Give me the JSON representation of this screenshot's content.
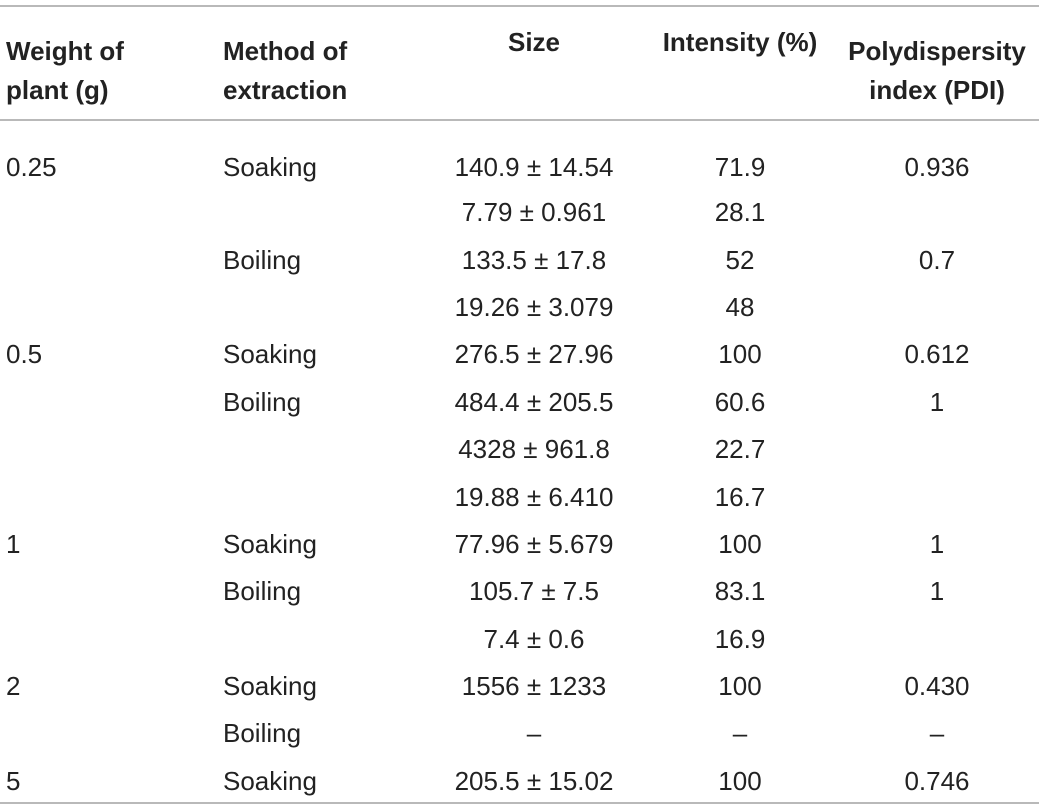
{
  "headers": [
    "Weight of plant (g)",
    "Method of extraction",
    "Size",
    "Intensity (%)",
    "Polydispersity index (PDI)"
  ],
  "header_lines": [
    [
      "Weight of",
      "plant (g)"
    ],
    [
      "Method of",
      "extraction"
    ],
    [
      "Size"
    ],
    [
      "Intensity (%)"
    ],
    [
      "Polydispersity",
      "index (PDI)"
    ]
  ],
  "rows": [
    {
      "weight": "0.25",
      "method": "Soaking",
      "size": "140.9 ± 14.54",
      "intensity": "71.9",
      "pdi": "0.936"
    },
    {
      "weight": "",
      "method": "",
      "size": "7.79 ± 0.961",
      "intensity": "28.1",
      "pdi": ""
    },
    {
      "weight": "",
      "method": "Boiling",
      "size": "133.5 ± 17.8",
      "intensity": "52",
      "pdi": "0.7"
    },
    {
      "weight": "",
      "method": "",
      "size": "19.26 ± 3.079",
      "intensity": "48",
      "pdi": ""
    },
    {
      "weight": "0.5",
      "method": "Soaking",
      "size": "276.5 ± 27.96",
      "intensity": "100",
      "pdi": "0.612"
    },
    {
      "weight": "",
      "method": "Boiling",
      "size": "484.4 ± 205.5",
      "intensity": "60.6",
      "pdi": "1"
    },
    {
      "weight": "",
      "method": "",
      "size": "4328 ± 961.8",
      "intensity": "22.7",
      "pdi": ""
    },
    {
      "weight": "",
      "method": "",
      "size": "19.88 ± 6.410",
      "intensity": "16.7",
      "pdi": ""
    },
    {
      "weight": "1",
      "method": "Soaking",
      "size": "77.96 ± 5.679",
      "intensity": "100",
      "pdi": "1"
    },
    {
      "weight": "",
      "method": "Boiling",
      "size": "105.7 ± 7.5",
      "intensity": "83.1",
      "pdi": "1"
    },
    {
      "weight": "",
      "method": "",
      "size": "7.4 ± 0.6",
      "intensity": "16.9",
      "pdi": ""
    },
    {
      "weight": "2",
      "method": "Soaking",
      "size": "1556 ± 1233",
      "intensity": "100",
      "pdi": "0.430"
    },
    {
      "weight": "",
      "method": "Boiling",
      "size": "–",
      "intensity": "–",
      "pdi": "–"
    },
    {
      "weight": "5",
      "method": "Soaking",
      "size": "205.5 ± 15.02",
      "intensity": "100",
      "pdi": "0.746"
    }
  ]
}
